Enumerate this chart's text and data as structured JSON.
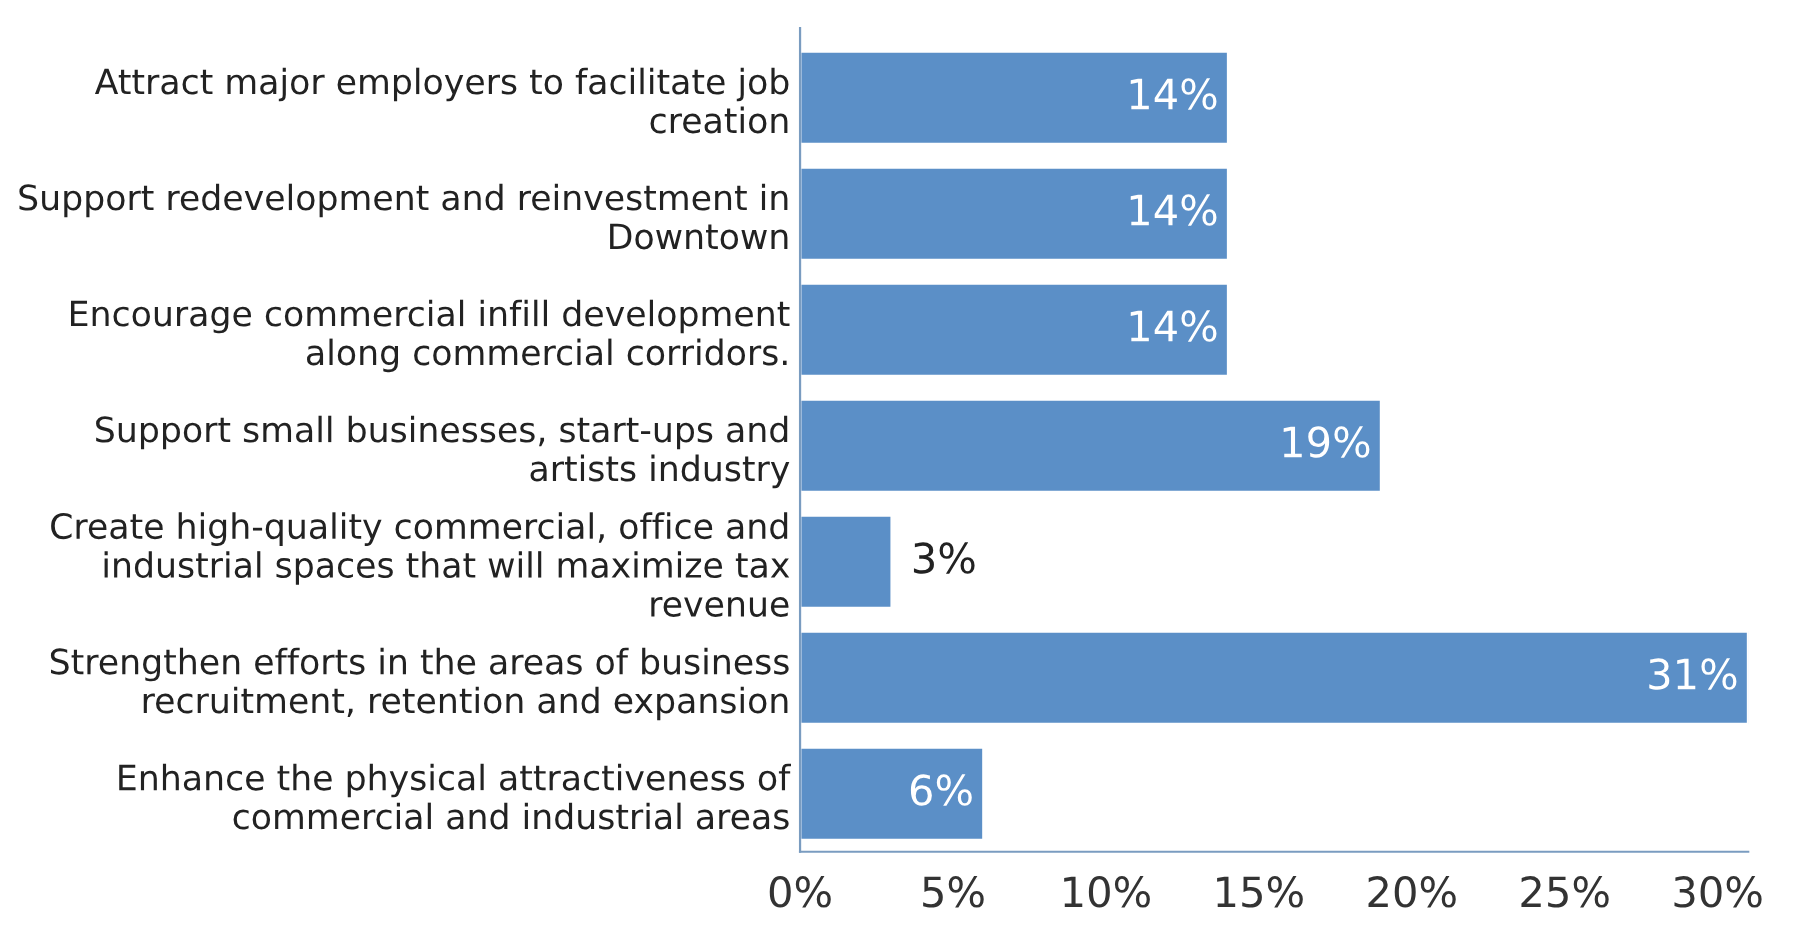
{
  "chart_data": {
    "type": "bar",
    "orientation": "horizontal",
    "categories": [
      "Attract major employers to facilitate job creation",
      "Support redevelopment and reinvestment in Downtown",
      "Encourage commercial infill development along commercial corridors.",
      "Support small businesses, start-ups and artists industry",
      "Create high-quality commercial, office and industrial spaces that will maximize tax revenue",
      "Strengthen efforts in the areas of business recruitment, retention and expansion",
      "Enhance the physical attractiveness of commercial and industrial areas"
    ],
    "values": [
      14,
      14,
      14,
      19,
      3,
      31,
      6
    ],
    "value_labels": [
      "14%",
      "14%",
      "14%",
      "19%",
      "3%",
      "31%",
      "6%"
    ],
    "color": "#5b8fc7",
    "xlim": [
      0,
      31
    ],
    "xticks": [
      {
        "value": 0,
        "label": "0%"
      },
      {
        "value": 5,
        "label": "5%"
      },
      {
        "value": 10,
        "label": "10%"
      },
      {
        "value": 15,
        "label": "15%"
      },
      {
        "value": 20,
        "label": "20%"
      },
      {
        "value": 25,
        "label": "25%"
      },
      {
        "value": 30,
        "label": "30%"
      }
    ],
    "grid": false,
    "legend": false
  }
}
